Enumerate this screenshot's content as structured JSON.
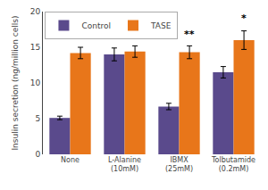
{
  "chart_data": {
    "type": "bar",
    "categories": [
      "None",
      "L-Alanine\n(10mM)",
      "IBMX\n(25mM)",
      "Tolbutamide\n(0.2mM)"
    ],
    "series": [
      {
        "name": "Control",
        "color": "#5a4a8c",
        "values": [
          5.1,
          14.0,
          6.7,
          11.5
        ],
        "errors": [
          0.25,
          0.9,
          0.45,
          0.8
        ]
      },
      {
        "name": "TASE",
        "color": "#e8761a",
        "values": [
          14.2,
          14.4,
          14.3,
          16.0
        ],
        "errors": [
          0.8,
          0.8,
          0.9,
          1.3
        ]
      }
    ],
    "ylabel": "Insulin secretion (ng/million cells)",
    "ylim": [
      0,
      20
    ],
    "yticks": [
      0,
      5,
      10,
      15,
      20
    ],
    "annotations": [
      {
        "text": "**",
        "category": "IBMX\n(25mM)",
        "series": "TASE",
        "y": 15.8
      },
      {
        "text": "*",
        "category": "Tolbutamide\n(0.2mM)",
        "series": "TASE",
        "y": 18.0
      }
    ],
    "legend": "upper left",
    "grid": false
  }
}
